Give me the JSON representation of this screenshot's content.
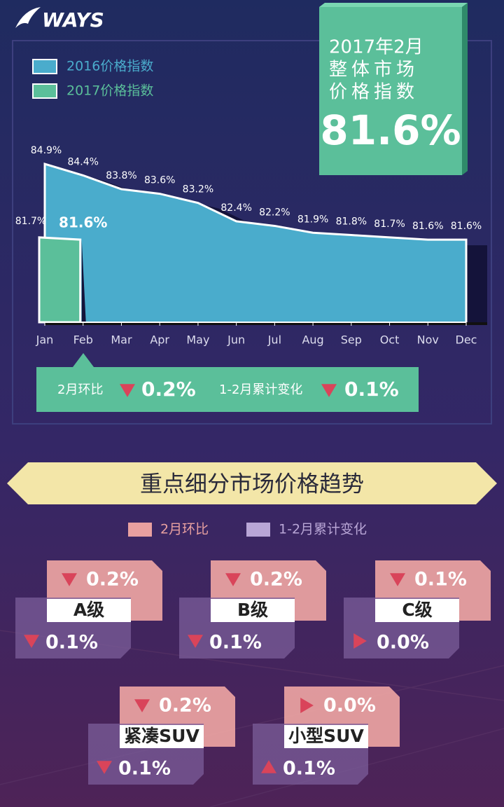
{
  "logo": "WAYS",
  "chart_data": {
    "type": "area",
    "categories": [
      "Jan",
      "Feb",
      "Mar",
      "Apr",
      "May",
      "Jun",
      "Jul",
      "Aug",
      "Sep",
      "Oct",
      "Nov",
      "Dec"
    ],
    "series": [
      {
        "name": "2016价格指数",
        "color": "#4aaccc",
        "values": [
          84.9,
          84.4,
          83.8,
          83.6,
          83.2,
          82.4,
          82.2,
          81.9,
          81.8,
          81.7,
          81.6,
          81.6
        ],
        "value_labels": [
          "84.9%",
          "84.4%",
          "83.8%",
          "83.6%",
          "83.2%",
          "82.4%",
          "82.2%",
          "81.9%",
          "81.8%",
          "81.7%",
          "81.6%",
          "81.6%"
        ]
      },
      {
        "name": "2017价格指数",
        "color": "#5bbf9a",
        "values": [
          81.7,
          81.6,
          null,
          null,
          null,
          null,
          null,
          null,
          null,
          null,
          null,
          null
        ],
        "value_labels": [
          "81.7%",
          "81.6%",
          null,
          null,
          null,
          null,
          null,
          null,
          null,
          null,
          null,
          null
        ]
      }
    ],
    "ylim": [
      78,
      86
    ],
    "legend": "top-left"
  },
  "highlight": {
    "lines": [
      "2017年2月",
      "整体市场",
      "价格指数"
    ],
    "value": "81.6%"
  },
  "summary": {
    "items": [
      {
        "label": "2月环比",
        "direction": "down",
        "value": "0.2%"
      },
      {
        "label": "1-2月累计变化",
        "direction": "down",
        "value": "0.1%"
      }
    ]
  },
  "section": {
    "title": "重点细分市场价格趋势",
    "legend": [
      "2月环比",
      "1-2月累计变化"
    ],
    "segments": [
      {
        "name": "A级",
        "mom": {
          "direction": "down",
          "value": "0.2%"
        },
        "cum": {
          "direction": "down",
          "value": "0.1%"
        }
      },
      {
        "name": "B级",
        "mom": {
          "direction": "down",
          "value": "0.2%"
        },
        "cum": {
          "direction": "down",
          "value": "0.1%"
        }
      },
      {
        "name": "C级",
        "mom": {
          "direction": "down",
          "value": "0.1%"
        },
        "cum": {
          "direction": "right",
          "value": "0.0%"
        }
      },
      {
        "name": "紧凑SUV",
        "mom": {
          "direction": "down",
          "value": "0.2%"
        },
        "cum": {
          "direction": "down",
          "value": "0.1%"
        }
      },
      {
        "name": "小型SUV",
        "mom": {
          "direction": "right",
          "value": "0.0%"
        },
        "cum": {
          "direction": "up",
          "value": "0.1%"
        }
      }
    ]
  }
}
